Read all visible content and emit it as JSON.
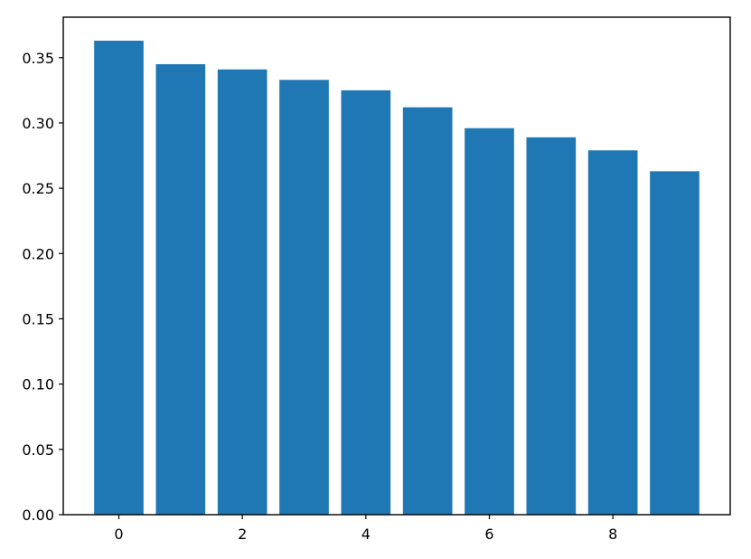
{
  "chart_data": {
    "type": "bar",
    "title": "",
    "xlabel": "",
    "ylabel": "",
    "x": [
      0,
      1,
      2,
      3,
      4,
      5,
      6,
      7,
      8,
      9
    ],
    "values": [
      0.363,
      0.345,
      0.341,
      0.333,
      0.325,
      0.312,
      0.296,
      0.289,
      0.279,
      0.263
    ],
    "xlim": [
      -0.9,
      9.9
    ],
    "ylim": [
      0.0,
      0.381
    ],
    "xticks": [
      0,
      2,
      4,
      6,
      8
    ],
    "xtick_labels": [
      "0",
      "2",
      "4",
      "6",
      "8"
    ],
    "yticks": [
      0.0,
      0.05,
      0.1,
      0.15,
      0.2,
      0.25,
      0.3,
      0.35
    ],
    "ytick_labels": [
      "0.00",
      "0.05",
      "0.10",
      "0.15",
      "0.20",
      "0.25",
      "0.30",
      "0.35"
    ],
    "bar_color": "#1f77b4",
    "grid": false,
    "legend": "none"
  }
}
